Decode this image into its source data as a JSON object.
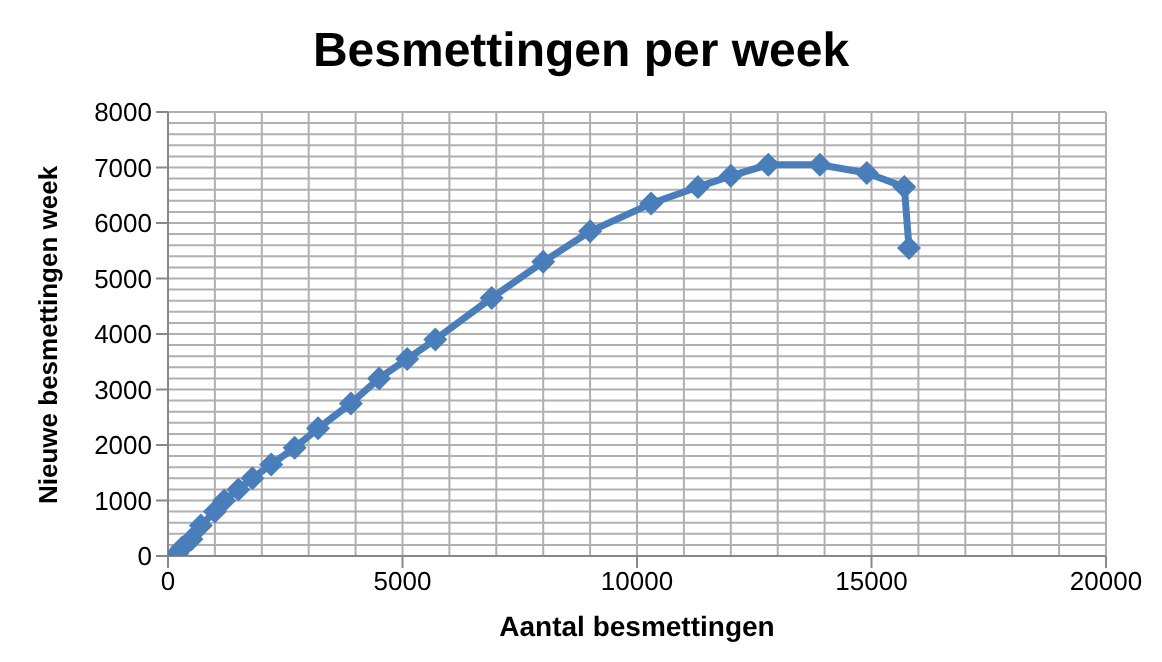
{
  "chart_data": {
    "type": "line",
    "title": "Besmettingen per week",
    "xlabel": "Aantal besmettingen",
    "ylabel": "Nieuwe besmettingen week",
    "x": [
      200,
      300,
      500,
      700,
      1000,
      1200,
      1500,
      1800,
      2200,
      2700,
      3200,
      3900,
      4500,
      5100,
      5700,
      6900,
      8000,
      9000,
      10300,
      11300,
      12000,
      12800,
      13900,
      14900,
      15700,
      15800
    ],
    "series": [
      {
        "color": "#4a7ebb",
        "values": [
          50,
          150,
          300,
          550,
          800,
          1000,
          1200,
          1400,
          1650,
          1950,
          2300,
          2750,
          3200,
          3550,
          3900,
          4650,
          5300,
          5850,
          6350,
          6650,
          6850,
          7050,
          7050,
          6900,
          6650,
          5550
        ]
      }
    ],
    "xlim": [
      0,
      20000
    ],
    "xticks": [
      0,
      5000,
      10000,
      15000,
      20000
    ],
    "ylim": [
      0,
      8000
    ],
    "yticks": [
      0,
      1000,
      2000,
      3000,
      4000,
      5000,
      6000,
      7000,
      8000
    ],
    "grid": true,
    "marker": "diamond",
    "line_style": "solid"
  }
}
